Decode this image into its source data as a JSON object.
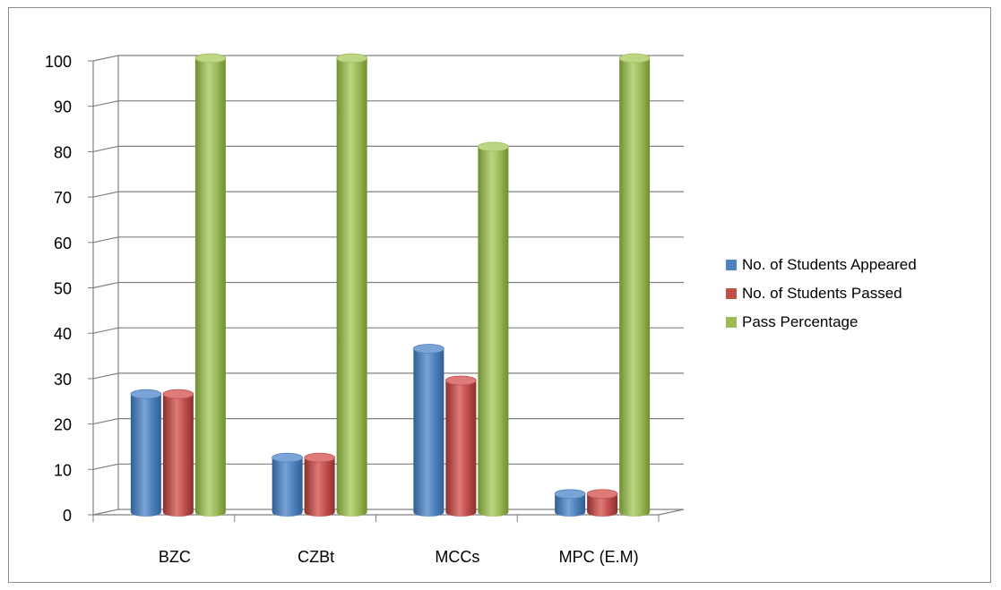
{
  "chart_data": {
    "type": "bar",
    "title": "",
    "xlabel": "",
    "ylabel": "",
    "categories": [
      "BZC",
      "CZBt",
      "MCCs",
      "MPC (E.M)"
    ],
    "series": [
      {
        "name": "No. of Students Appeared",
        "values": [
          26,
          12,
          36,
          4
        ]
      },
      {
        "name": "No. of Students Passed",
        "values": [
          26,
          12,
          29,
          4
        ]
      },
      {
        "name": "Pass Percentage",
        "values": [
          100,
          100,
          80.5,
          100
        ]
      }
    ],
    "ylim": [
      0,
      100
    ],
    "yticks": [
      "0",
      "10",
      "20",
      "30",
      "40",
      "50",
      "60",
      "70",
      "80",
      "90",
      "100"
    ],
    "grid": true,
    "legend_position": "right",
    "style": "3d-cylinder"
  },
  "colors": {
    "series": [
      "#4f81bd",
      "#c0504d",
      "#9bbb59"
    ],
    "series_dark": [
      "#2f5f93",
      "#8c2f2d",
      "#6f8f30"
    ],
    "series_light": [
      "#7aa3d6",
      "#de7a77",
      "#bcd683"
    ],
    "gridline": "#808080",
    "axis": "#808080"
  }
}
